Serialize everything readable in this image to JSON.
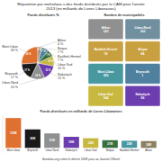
{
  "title": "Répartition par muhafaza-s des fonds distribués par la CAM pour l'année",
  "subtitle": "2013 (en milliards de Livres Libanaises)",
  "source": "lbandata.org selon le décret 1508 paru au Journal Officiel",
  "chart_data": [
    {
      "type": "pie",
      "title": "Fonds distribués %",
      "categories": [
        "Mont Liban",
        "Beyrouth",
        "Liban-Nord",
        "Nabatiych",
        "Liban Sud",
        "Baalbek-Hermel",
        "Beqaa",
        "Akkar"
      ],
      "values": [
        26,
        17,
        14,
        15,
        10,
        7,
        7,
        4
      ],
      "value_labels": [
        "26 %",
        "17 %",
        "14 %",
        "15 %",
        "10 %",
        "7 %",
        "7 %",
        "4 %"
      ],
      "colors": [
        "#E07030",
        "#1A1A1A",
        "#909090",
        "#6B3DAE",
        "#C8B840",
        "#3A7040",
        "#5080A0",
        "#A09070"
      ],
      "data_labels": true
    },
    {
      "type": "map",
      "title": "Nombre de municipalités",
      "categories": [
        "Akkar",
        "Liban-Nord",
        "Baalbek-Hermel",
        "Beqaa",
        "Mont Liban",
        "Beyrouth",
        "Liban Sud",
        "Nabatiych"
      ],
      "values": [
        143,
        143,
        74,
        84,
        350,
        1,
        144,
        86
      ],
      "colors": [
        "#909090",
        "#7090A0",
        "#C8A040",
        "#C8A040",
        "#4898A0",
        "#5080A0",
        "#C8B840",
        "#6B3DAE"
      ],
      "data_labels": true
    },
    {
      "type": "bar",
      "title": "Fonds distribués en milliards de Livres Libanaises",
      "categories": [
        "Mont Liban",
        "Beyrouth",
        "Liban Nord",
        "Nabatiych",
        "Liban Sud",
        "Beqaa",
        "Baalbek-Hermel",
        "Akkar"
      ],
      "values": [
        105,
        65,
        51,
        39,
        34,
        27,
        25,
        24
      ],
      "value_labels": [
        "105M",
        "65M",
        "51M",
        "39M",
        "34M",
        "27M",
        "25M",
        "24M"
      ],
      "colors": [
        "#E07030",
        "#1A1A1A",
        "#909090",
        "#6B3DAE",
        "#C8B840",
        "#3A7040",
        "#4898A0",
        "#8B8060"
      ],
      "ylim": [
        -18,
        115
      ],
      "data_labels": true,
      "tick_labels": "x"
    }
  ]
}
